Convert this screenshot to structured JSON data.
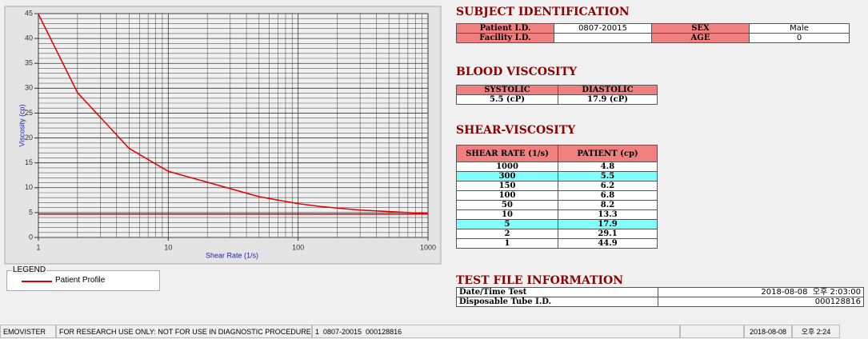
{
  "chart_data": {
    "type": "line",
    "xlabel": "Shear Rate (1/s)",
    "ylabel": "Viscosity (cp)",
    "xscale": "log",
    "xlim": [
      1,
      1000
    ],
    "ylim": [
      0,
      45
    ],
    "xticks": [
      1,
      10,
      100,
      1000
    ],
    "yticks": [
      0,
      5,
      10,
      15,
      20,
      25,
      30,
      35,
      40,
      45
    ],
    "xminorticks": [
      2,
      3,
      4,
      5,
      6,
      7,
      8,
      9,
      20,
      30,
      40,
      50,
      60,
      70,
      80,
      90,
      200,
      300,
      400,
      500,
      600,
      700,
      800,
      900
    ],
    "yminorticks": [
      1,
      2,
      3,
      4,
      6,
      7,
      8,
      9,
      11,
      12,
      13,
      14,
      16,
      17,
      18,
      19,
      21,
      22,
      23,
      24,
      26,
      27,
      28,
      29,
      31,
      32,
      33,
      34,
      36,
      37,
      38,
      39,
      41,
      42,
      43,
      44
    ],
    "grid": true,
    "legend_title": "LEGEND",
    "series": [
      {
        "name": "Patient Profile",
        "color": "#e00000",
        "x": [
          1,
          2,
          5,
          10,
          50,
          100,
          150,
          300,
          1000
        ],
        "values": [
          44.9,
          29.1,
          17.9,
          13.3,
          8.2,
          6.8,
          6.2,
          5.5,
          4.8
        ]
      },
      {
        "color": "#e00000",
        "x": [
          1,
          1000
        ],
        "values": [
          4.7,
          4.7
        ]
      }
    ]
  },
  "subject": {
    "title": "SUBJECT IDENTIFICATION",
    "rows": [
      {
        "label": "Patient I.D.",
        "value": "0807-20015",
        "label2": "SEX",
        "value2": "Male"
      },
      {
        "label": "Facility I.D.",
        "label2": "AGE",
        "value2": "0"
      }
    ]
  },
  "blood": {
    "title": "BLOOD VISCOSITY",
    "headers": [
      "SYSTOLIC",
      "DIASTOLIC"
    ],
    "values": [
      "5.5 (cP)",
      "17.9 (cP)"
    ]
  },
  "shear": {
    "title": "SHEAR-VISCOSITY",
    "headers": [
      "SHEAR RATE (1/s)",
      "PATIENT (cp)"
    ],
    "highlight_rows": [
      1,
      6
    ],
    "rows": [
      [
        "1000",
        "4.8"
      ],
      [
        "300",
        "5.5"
      ],
      [
        "150",
        "6.2"
      ],
      [
        "100",
        "6.8"
      ],
      [
        "50",
        "8.2"
      ],
      [
        "10",
        "13.3"
      ],
      [
        "5",
        "17.9"
      ],
      [
        "2",
        "29.1"
      ],
      [
        "1",
        "44.9"
      ]
    ]
  },
  "test": {
    "title": "TEST FILE INFORMATION",
    "rows": [
      [
        "Date/Time Test",
        "2018-08-08  오후 2:03:00"
      ],
      [
        "Disposable Tube I.D.",
        "000128816"
      ]
    ]
  },
  "status": [
    "EMOVISTER",
    "FOR RESEARCH USE ONLY: NOT FOR USE IN DIAGNOSTIC PROCEDURES",
    "1  0807-20015  000128816",
    "2018-08-08",
    "오후 2:24"
  ]
}
